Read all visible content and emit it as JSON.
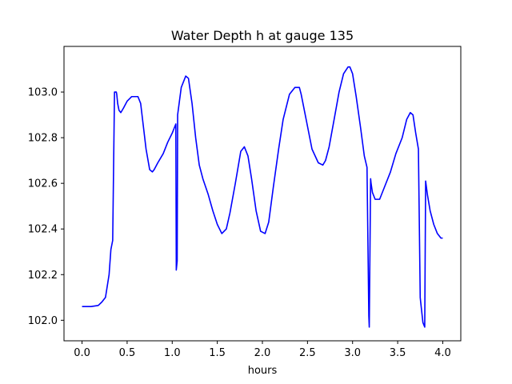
{
  "chart_data": {
    "type": "line",
    "title": "Water Depth h at gauge 135",
    "xlabel": "hours",
    "ylabel": "",
    "xlim": [
      -0.2,
      4.2
    ],
    "ylim": [
      101.91,
      103.2
    ],
    "xticks": [
      0.0,
      0.5,
      1.0,
      1.5,
      2.0,
      2.5,
      3.0,
      3.5,
      4.0
    ],
    "xtick_labels": [
      "0.0",
      "0.5",
      "1.0",
      "1.5",
      "2.0",
      "2.5",
      "3.0",
      "3.5",
      "4.0"
    ],
    "yticks": [
      102.0,
      102.2,
      102.4,
      102.6,
      102.8,
      103.0
    ],
    "ytick_labels": [
      "102.0",
      "102.2",
      "102.4",
      "102.6",
      "102.8",
      "103.0"
    ],
    "grid": false,
    "legend": "none",
    "series": [
      {
        "color": "#0000ff",
        "x": [
          0.0,
          0.1,
          0.18,
          0.22,
          0.26,
          0.3,
          0.32,
          0.34,
          0.36,
          0.375,
          0.38,
          0.385,
          0.395,
          0.41,
          0.43,
          0.46,
          0.5,
          0.55,
          0.58,
          0.62,
          0.65,
          0.68,
          0.71,
          0.75,
          0.78,
          0.8,
          0.84,
          0.9,
          0.95,
          1.0,
          1.04,
          1.045,
          1.055,
          1.06,
          1.1,
          1.15,
          1.18,
          1.22,
          1.26,
          1.3,
          1.34,
          1.4,
          1.45,
          1.5,
          1.55,
          1.6,
          1.64,
          1.7,
          1.76,
          1.8,
          1.84,
          1.88,
          1.93,
          1.98,
          2.03,
          2.07,
          2.12,
          2.18,
          2.23,
          2.3,
          2.36,
          2.41,
          2.43,
          2.45,
          2.49,
          2.55,
          2.62,
          2.67,
          2.7,
          2.74,
          2.8,
          2.85,
          2.9,
          2.95,
          2.97,
          3.0,
          3.04,
          3.09,
          3.13,
          3.16,
          3.18,
          3.185,
          3.2,
          3.205,
          3.22,
          3.25,
          3.3,
          3.35,
          3.42,
          3.48,
          3.55,
          3.6,
          3.64,
          3.67,
          3.7,
          3.73,
          3.75,
          3.755,
          3.78,
          3.8,
          3.81,
          3.83,
          3.86,
          3.9,
          3.94,
          3.98,
          4.0
        ],
        "y": [
          102.06,
          102.06,
          102.065,
          102.08,
          102.1,
          102.2,
          102.31,
          102.35,
          103.0,
          103.0,
          103.0,
          102.99,
          102.95,
          102.92,
          102.91,
          102.93,
          102.96,
          102.98,
          102.98,
          102.98,
          102.95,
          102.85,
          102.75,
          102.66,
          102.65,
          102.66,
          102.69,
          102.73,
          102.78,
          102.82,
          102.86,
          102.22,
          102.26,
          102.9,
          103.02,
          103.07,
          103.06,
          102.95,
          102.8,
          102.68,
          102.62,
          102.55,
          102.48,
          102.42,
          102.38,
          102.4,
          102.47,
          102.6,
          102.74,
          102.76,
          102.72,
          102.62,
          102.48,
          102.39,
          102.38,
          102.43,
          102.58,
          102.75,
          102.88,
          102.99,
          103.02,
          103.02,
          102.99,
          102.95,
          102.87,
          102.75,
          102.69,
          102.68,
          102.7,
          102.76,
          102.89,
          103.0,
          103.08,
          103.11,
          103.11,
          103.08,
          102.98,
          102.84,
          102.72,
          102.67,
          102.02,
          101.97,
          102.62,
          102.6,
          102.56,
          102.53,
          102.53,
          102.58,
          102.65,
          102.73,
          102.8,
          102.88,
          102.91,
          102.9,
          102.82,
          102.75,
          102.1,
          102.08,
          101.99,
          101.97,
          102.61,
          102.55,
          102.48,
          102.42,
          102.38,
          102.36,
          102.36
        ]
      }
    ]
  }
}
